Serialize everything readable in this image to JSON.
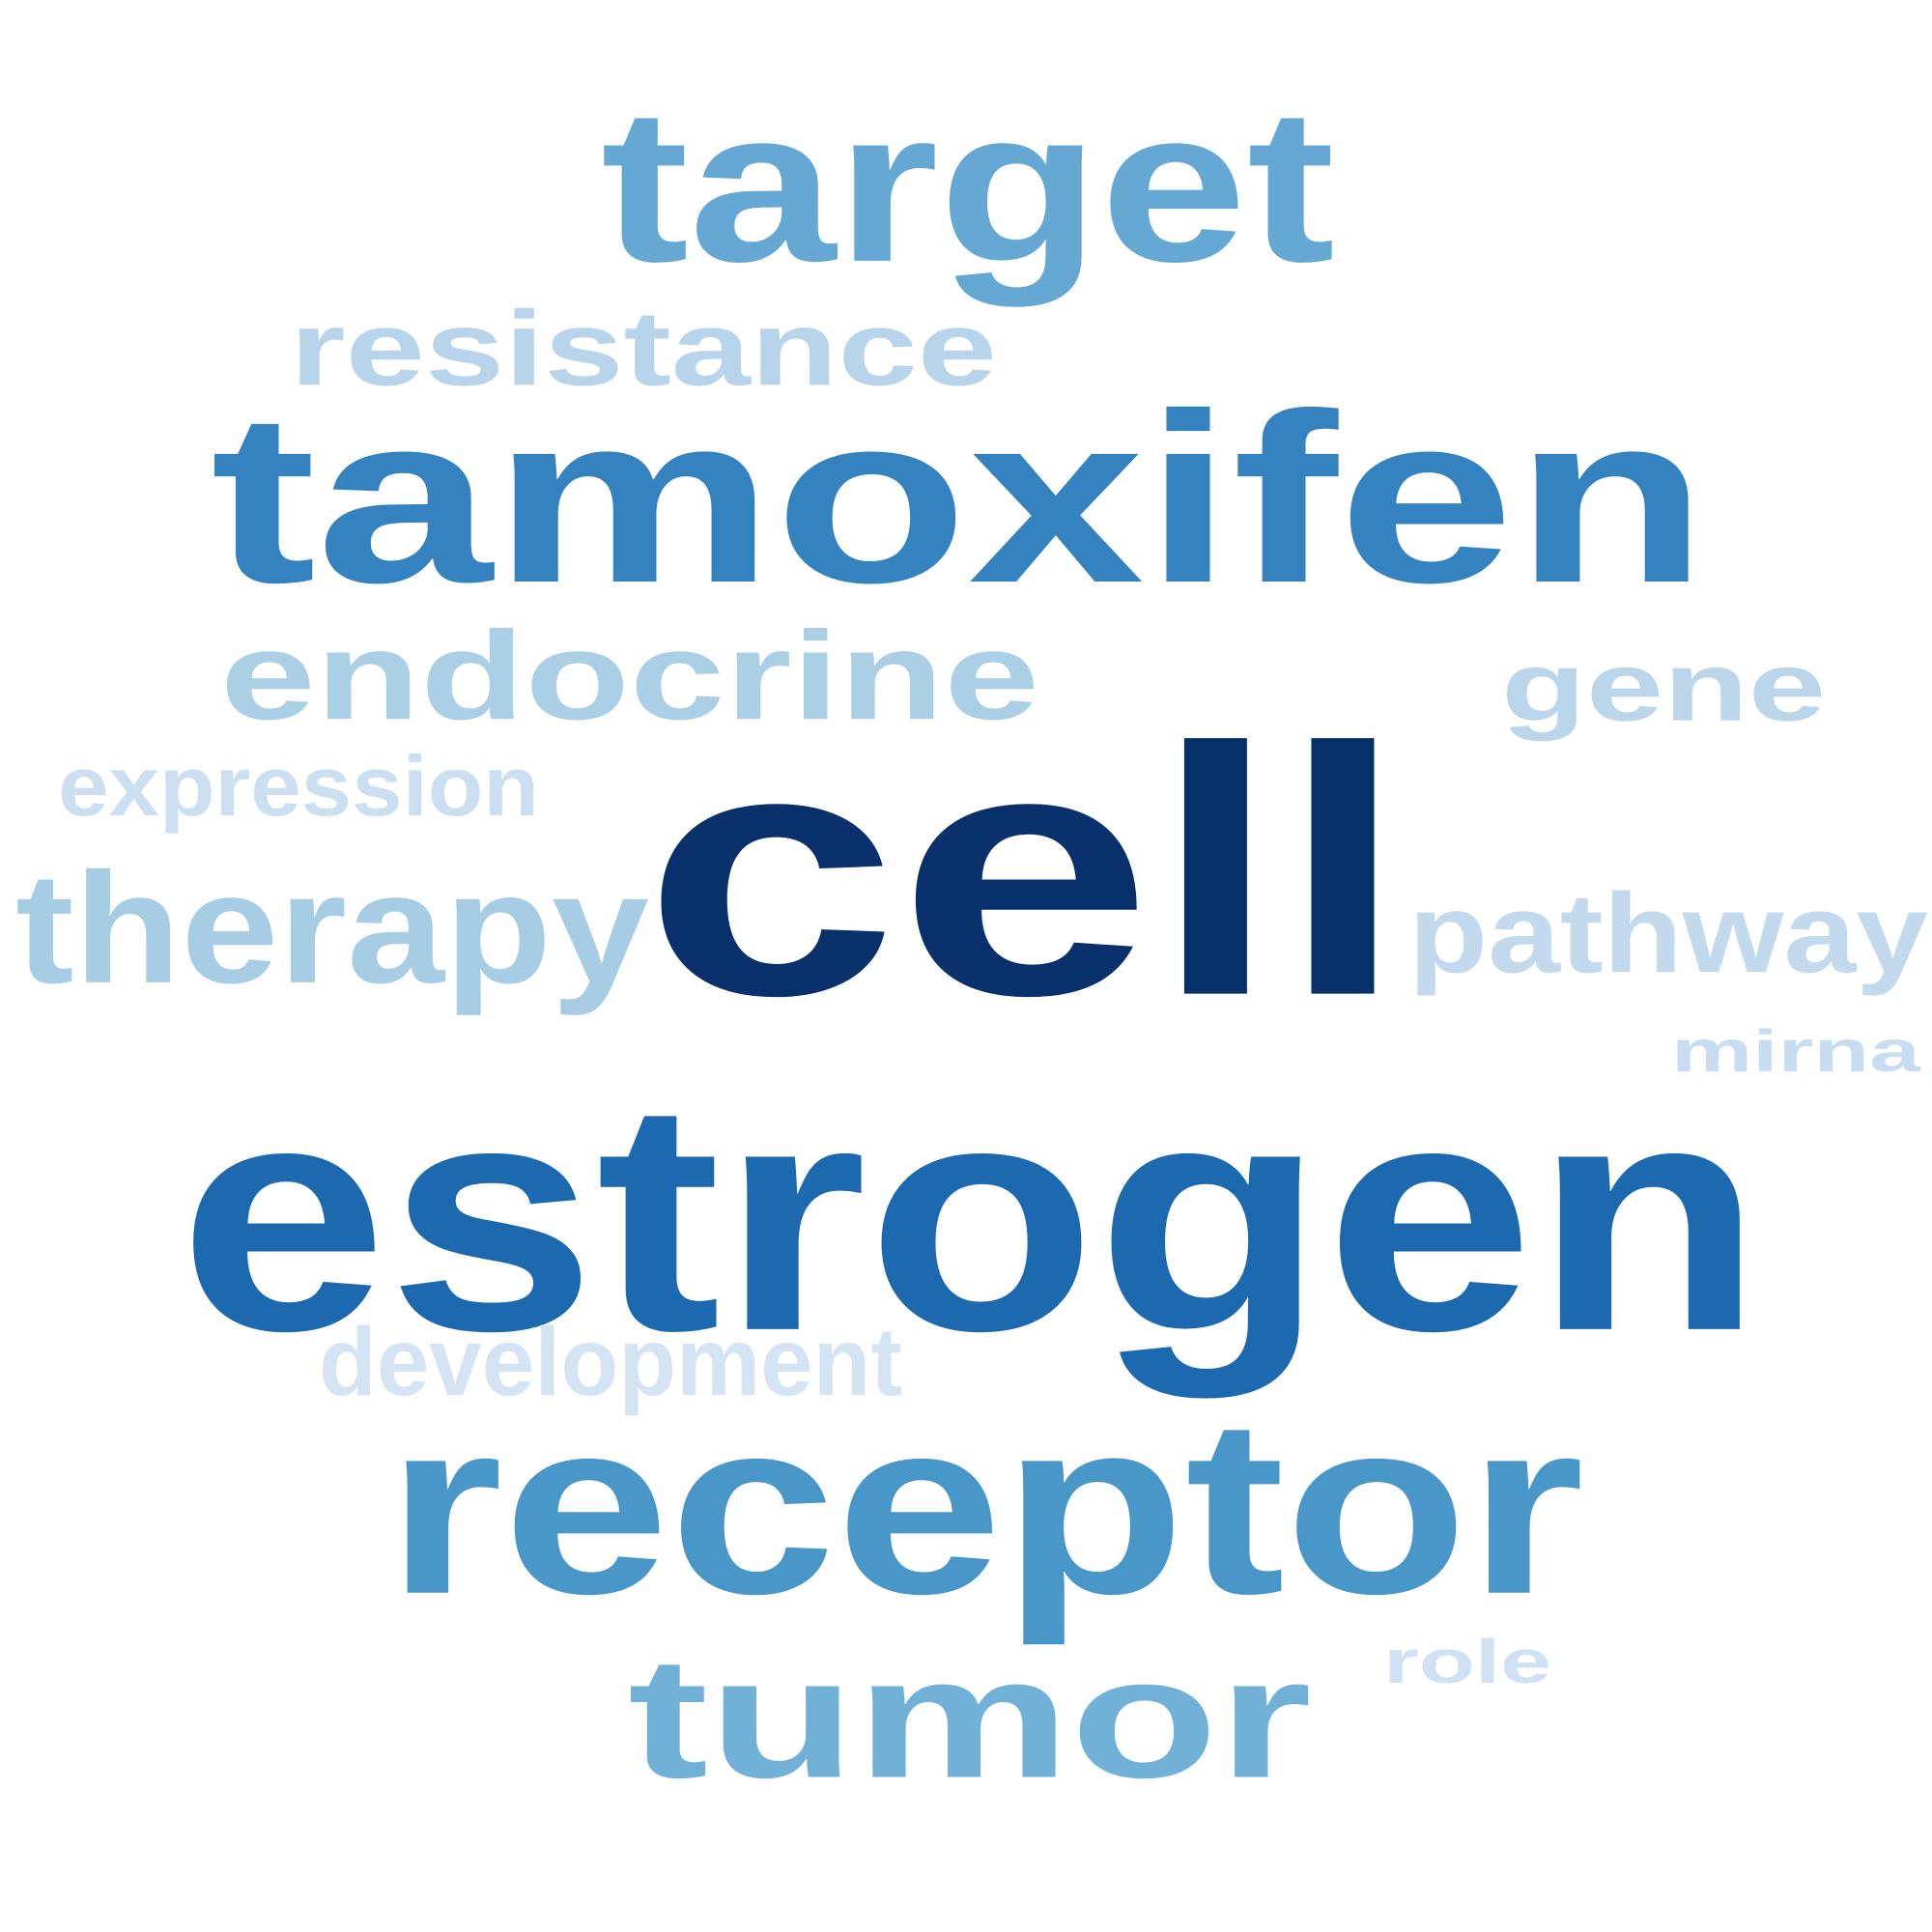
{
  "word_cloud": {
    "words": [
      {
        "text": "cell",
        "color": "#08306b"
      },
      {
        "text": "estrogen",
        "color": "#1c69b0"
      },
      {
        "text": "tamoxifen",
        "color": "#3482bf"
      },
      {
        "text": "receptor",
        "color": "#4997c9"
      },
      {
        "text": "target",
        "color": "#64a8d3"
      },
      {
        "text": "tumor",
        "color": "#72b1d7"
      },
      {
        "text": "therapy",
        "color": "#a6cde4"
      },
      {
        "text": "endocrine",
        "color": "#abcfe5"
      },
      {
        "text": "resistance",
        "color": "#b7d4ea"
      },
      {
        "text": "gene",
        "color": "#bbd6eb"
      },
      {
        "text": "pathway",
        "color": "#c2d9ee"
      },
      {
        "text": "mirna",
        "color": "#c8ddf0"
      },
      {
        "text": "expression",
        "color": "#cbdff1"
      },
      {
        "text": "role",
        "color": "#cfe1f2"
      },
      {
        "text": "development",
        "color": "#d4e4f4"
      }
    ]
  }
}
